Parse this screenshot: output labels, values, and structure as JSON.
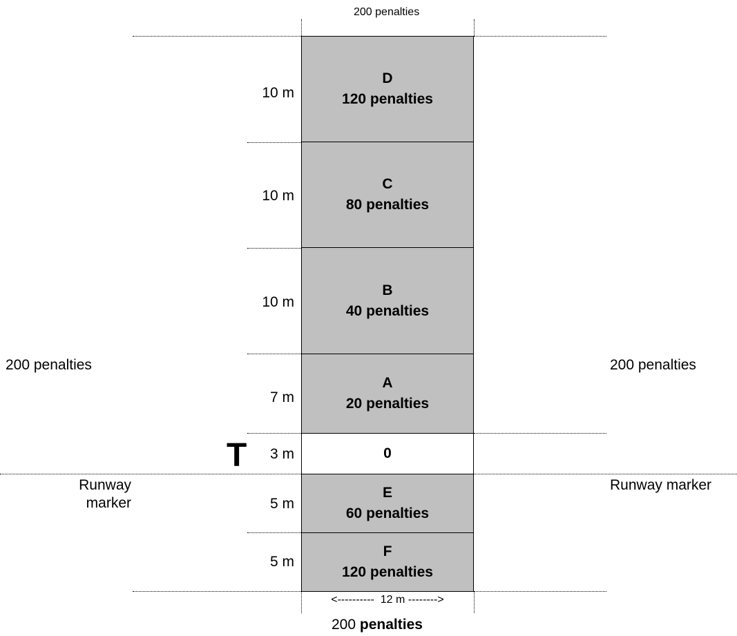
{
  "top_label": "200 penalties",
  "bottom_label": {
    "value": "200",
    "unit": "penalties"
  },
  "left_label": "200 penalties",
  "right_label": "200 penalties",
  "runway_marker_left": [
    "Runway",
    "marker"
  ],
  "runway_marker_right": "Runway marker",
  "width_label": "<----------  12 m -------->",
  "touchdown_symbol": "T",
  "zones": [
    {
      "letter": "D",
      "penalty": "120 penalties",
      "distance": "10 m",
      "fill": "#c0c0c0"
    },
    {
      "letter": "C",
      "penalty": "80 penalties",
      "distance": "10 m",
      "fill": "#c0c0c0"
    },
    {
      "letter": "B",
      "penalty": "40 penalties",
      "distance": "10 m",
      "fill": "#c0c0c0"
    },
    {
      "letter": "A",
      "penalty": "20 penalties",
      "distance": "7 m",
      "fill": "#c0c0c0"
    },
    {
      "letter": "0",
      "penalty": "",
      "distance": "3 m",
      "fill": "#ffffff"
    },
    {
      "letter": "E",
      "penalty": "60 penalties",
      "distance": "5 m",
      "fill": "#c0c0c0"
    },
    {
      "letter": "F",
      "penalty": "120 penalties",
      "distance": "5 m",
      "fill": "#c0c0c0"
    }
  ]
}
